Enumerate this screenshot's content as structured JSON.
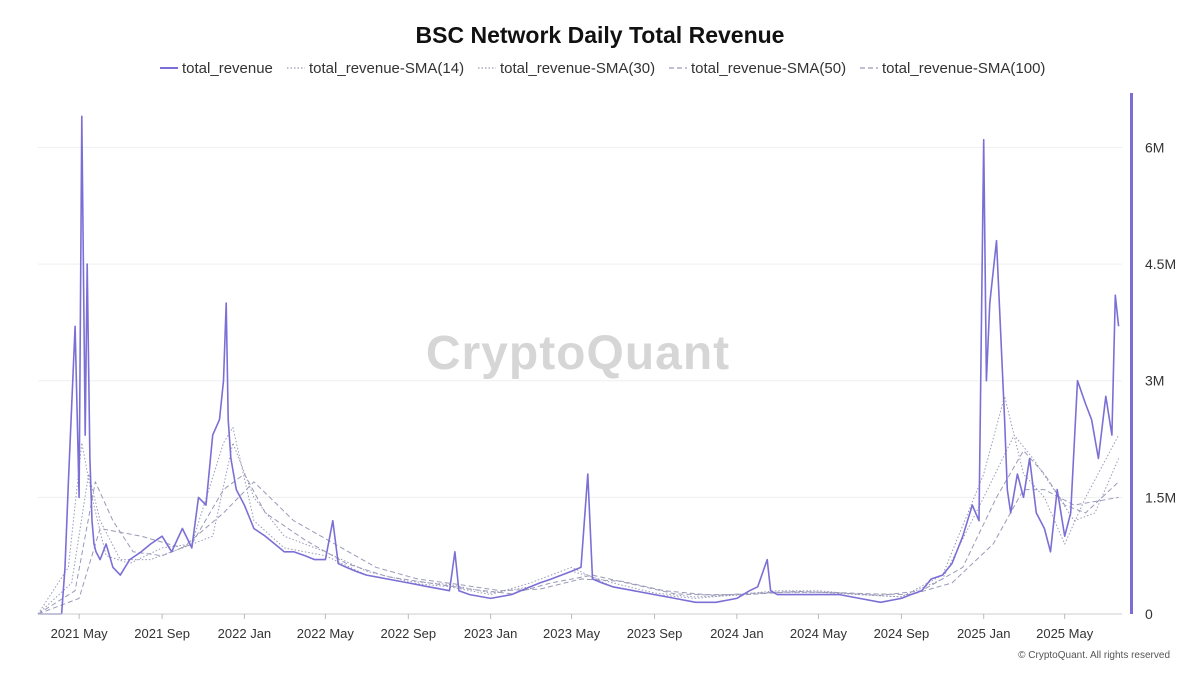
{
  "chart_data": {
    "type": "line",
    "title": "BSC Network Daily Total Revenue",
    "watermark": "CryptoQuant",
    "copyright": "© CryptoQuant. All rights reserved",
    "xlabel": "",
    "ylabel": "",
    "x_ticks": [
      "2021 May",
      "2021 Sep",
      "2022 Jan",
      "2022 May",
      "2022 Sep",
      "2023 Jan",
      "2023 May",
      "2023 Sep",
      "2024 Jan",
      "2024 May",
      "2024 Sep",
      "2025 Jan",
      "2025 May"
    ],
    "y_ticks": [
      "0",
      "1.5M",
      "3M",
      "4.5M",
      "6M"
    ],
    "y_tick_values": [
      0,
      1500000,
      3000000,
      4500000,
      6000000
    ],
    "ylim": [
      0,
      6700000
    ],
    "xlim": [
      "2021-03-01",
      "2025-07-25"
    ],
    "legend_position": "top-center",
    "grid": "horizontal",
    "colors": {
      "line": "#7b6fd6",
      "sma": "#9a9ab8",
      "grid": "#efefef",
      "axis_bar": "#7b6fd6"
    },
    "series": [
      {
        "name": "total_revenue",
        "style": "solid",
        "x": [
          "2021-03-01",
          "2021-03-20",
          "2021-04-05",
          "2021-04-10",
          "2021-04-15",
          "2021-04-25",
          "2021-05-01",
          "2021-05-05",
          "2021-05-10",
          "2021-05-13",
          "2021-05-17",
          "2021-05-20",
          "2021-05-23",
          "2021-05-26",
          "2021-06-01",
          "2021-06-10",
          "2021-06-20",
          "2021-07-01",
          "2021-07-15",
          "2021-08-01",
          "2021-08-15",
          "2021-09-01",
          "2021-09-15",
          "2021-10-01",
          "2021-10-15",
          "2021-10-25",
          "2021-11-05",
          "2021-11-15",
          "2021-11-25",
          "2021-12-01",
          "2021-12-05",
          "2021-12-08",
          "2021-12-12",
          "2021-12-20",
          "2022-01-01",
          "2022-01-15",
          "2022-02-01",
          "2022-02-15",
          "2022-03-01",
          "2022-03-15",
          "2022-04-01",
          "2022-04-15",
          "2022-05-01",
          "2022-05-12",
          "2022-05-20",
          "2022-06-01",
          "2022-06-15",
          "2022-07-01",
          "2022-08-01",
          "2022-09-01",
          "2022-10-01",
          "2022-11-01",
          "2022-11-09",
          "2022-11-15",
          "2022-12-01",
          "2023-01-01",
          "2023-02-01",
          "2023-03-01",
          "2023-03-15",
          "2023-04-01",
          "2023-05-01",
          "2023-05-15",
          "2023-05-25",
          "2023-06-01",
          "2023-06-15",
          "2023-07-01",
          "2023-08-01",
          "2023-09-01",
          "2023-10-01",
          "2023-11-01",
          "2023-12-01",
          "2024-01-01",
          "2024-01-20",
          "2024-02-01",
          "2024-02-15",
          "2024-02-20",
          "2024-03-01",
          "2024-04-01",
          "2024-05-01",
          "2024-06-01",
          "2024-07-01",
          "2024-08-01",
          "2024-09-01",
          "2024-09-15",
          "2024-10-01",
          "2024-10-15",
          "2024-11-01",
          "2024-11-15",
          "2024-12-01",
          "2024-12-15",
          "2024-12-25",
          "2025-01-01",
          "2025-01-05",
          "2025-01-10",
          "2025-01-20",
          "2025-02-01",
          "2025-02-05",
          "2025-02-10",
          "2025-02-20",
          "2025-03-01",
          "2025-03-10",
          "2025-03-20",
          "2025-04-01",
          "2025-04-10",
          "2025-04-20",
          "2025-05-01",
          "2025-05-10",
          "2025-05-20",
          "2025-06-01",
          "2025-06-10",
          "2025-06-20",
          "2025-07-01",
          "2025-07-10",
          "2025-07-15",
          "2025-07-20"
        ],
        "values": [
          0,
          0,
          0,
          600000,
          1700000,
          3700000,
          1500000,
          6400000,
          2300000,
          4500000,
          2000000,
          1200000,
          900000,
          800000,
          700000,
          900000,
          600000,
          500000,
          700000,
          800000,
          900000,
          1000000,
          800000,
          1100000,
          850000,
          1500000,
          1400000,
          2300000,
          2500000,
          3000000,
          4000000,
          2500000,
          2000000,
          1600000,
          1400000,
          1100000,
          1000000,
          900000,
          800000,
          800000,
          750000,
          700000,
          700000,
          1200000,
          650000,
          600000,
          550000,
          500000,
          450000,
          400000,
          350000,
          300000,
          800000,
          300000,
          250000,
          200000,
          250000,
          350000,
          400000,
          450000,
          550000,
          600000,
          1800000,
          450000,
          400000,
          350000,
          300000,
          250000,
          200000,
          150000,
          150000,
          200000,
          300000,
          350000,
          700000,
          300000,
          250000,
          250000,
          250000,
          250000,
          200000,
          150000,
          200000,
          250000,
          300000,
          450000,
          500000,
          650000,
          1000000,
          1400000,
          1200000,
          6100000,
          3000000,
          4000000,
          4800000,
          2500000,
          1600000,
          1300000,
          1800000,
          1500000,
          2000000,
          1300000,
          1100000,
          800000,
          1600000,
          1000000,
          1300000,
          3000000,
          2700000,
          2500000,
          2000000,
          2800000,
          2300000,
          4100000,
          3700000
        ]
      },
      {
        "name": "total_revenue-SMA(14)",
        "style": "dotted",
        "x": [
          "2021-03-01",
          "2021-04-15",
          "2021-05-05",
          "2021-05-20",
          "2021-06-10",
          "2021-07-15",
          "2021-09-01",
          "2021-10-15",
          "2021-12-01",
          "2021-12-15",
          "2022-01-15",
          "2022-03-01",
          "2022-05-01",
          "2022-07-01",
          "2022-09-01",
          "2022-11-01",
          "2023-01-01",
          "2023-03-01",
          "2023-05-01",
          "2023-07-01",
          "2023-09-01",
          "2023-11-01",
          "2024-01-01",
          "2024-03-01",
          "2024-05-01",
          "2024-07-01",
          "2024-09-01",
          "2024-11-01",
          "2025-01-01",
          "2025-02-01",
          "2025-03-01",
          "2025-04-01",
          "2025-05-01",
          "2025-06-01",
          "2025-07-20"
        ],
        "values": [
          0,
          600000,
          2200000,
          1500000,
          750000,
          650000,
          850000,
          900000,
          2200000,
          2400000,
          1200000,
          850000,
          750000,
          500000,
          400000,
          350000,
          250000,
          400000,
          600000,
          350000,
          250000,
          200000,
          250000,
          300000,
          300000,
          250000,
          220000,
          500000,
          1800000,
          2800000,
          1800000,
          1500000,
          900000,
          1500000,
          2300000
        ]
      },
      {
        "name": "total_revenue-SMA(30)",
        "style": "dotted",
        "x": [
          "2021-03-01",
          "2021-04-20",
          "2021-05-15",
          "2021-06-01",
          "2021-07-01",
          "2021-08-15",
          "2021-10-01",
          "2021-11-15",
          "2021-12-15",
          "2022-01-15",
          "2022-03-01",
          "2022-05-01",
          "2022-07-01",
          "2022-09-01",
          "2022-11-01",
          "2023-01-01",
          "2023-03-01",
          "2023-05-01",
          "2023-07-01",
          "2023-09-01",
          "2023-11-01",
          "2024-01-01",
          "2024-03-01",
          "2024-05-01",
          "2024-07-01",
          "2024-09-01",
          "2024-11-01",
          "2025-01-01",
          "2025-02-15",
          "2025-03-15",
          "2025-04-15",
          "2025-05-15",
          "2025-06-15",
          "2025-07-20"
        ],
        "values": [
          0,
          400000,
          1800000,
          1200000,
          700000,
          700000,
          850000,
          1000000,
          2200000,
          1500000,
          1000000,
          800000,
          550000,
          420000,
          380000,
          270000,
          350000,
          550000,
          400000,
          270000,
          220000,
          240000,
          280000,
          280000,
          250000,
          220000,
          450000,
          1500000,
          2300000,
          2000000,
          1600000,
          1200000,
          1300000,
          2000000
        ]
      },
      {
        "name": "total_revenue-SMA(50)",
        "style": "dashed",
        "x": [
          "2021-03-01",
          "2021-04-25",
          "2021-05-25",
          "2021-06-20",
          "2021-07-20",
          "2021-09-01",
          "2021-10-15",
          "2021-12-01",
          "2022-01-01",
          "2022-02-01",
          "2022-04-01",
          "2022-06-01",
          "2022-08-01",
          "2022-10-01",
          "2022-12-01",
          "2023-02-01",
          "2023-04-01",
          "2023-06-01",
          "2023-08-01",
          "2023-10-01",
          "2023-12-01",
          "2024-02-01",
          "2024-04-01",
          "2024-06-01",
          "2024-08-01",
          "2024-10-01",
          "2024-12-01",
          "2025-01-20",
          "2025-03-01",
          "2025-04-01",
          "2025-05-01",
          "2025-06-01",
          "2025-07-20"
        ],
        "values": [
          0,
          300000,
          1700000,
          1200000,
          800000,
          750000,
          900000,
          1600000,
          1800000,
          1300000,
          950000,
          650000,
          480000,
          400000,
          320000,
          260000,
          400000,
          500000,
          380000,
          260000,
          240000,
          270000,
          290000,
          270000,
          240000,
          300000,
          600000,
          1500000,
          2100000,
          1800000,
          1400000,
          1300000,
          1700000
        ]
      },
      {
        "name": "total_revenue-SMA(100)",
        "style": "dashed",
        "x": [
          "2021-03-01",
          "2021-05-01",
          "2021-06-01",
          "2021-08-01",
          "2021-10-01",
          "2021-12-01",
          "2022-01-15",
          "2022-03-15",
          "2022-05-15",
          "2022-07-15",
          "2022-09-15",
          "2022-11-15",
          "2023-01-15",
          "2023-03-15",
          "2023-05-15",
          "2023-07-15",
          "2023-09-15",
          "2023-11-15",
          "2024-01-15",
          "2024-03-15",
          "2024-05-15",
          "2024-07-15",
          "2024-09-15",
          "2024-11-15",
          "2025-01-15",
          "2025-03-01",
          "2025-04-01",
          "2025-05-15",
          "2025-07-20"
        ],
        "values": [
          0,
          200000,
          1100000,
          1000000,
          850000,
          1300000,
          1700000,
          1200000,
          900000,
          600000,
          450000,
          380000,
          300000,
          320000,
          450000,
          420000,
          300000,
          250000,
          250000,
          280000,
          280000,
          260000,
          250000,
          400000,
          900000,
          1600000,
          1600000,
          1400000,
          1500000
        ]
      }
    ]
  }
}
